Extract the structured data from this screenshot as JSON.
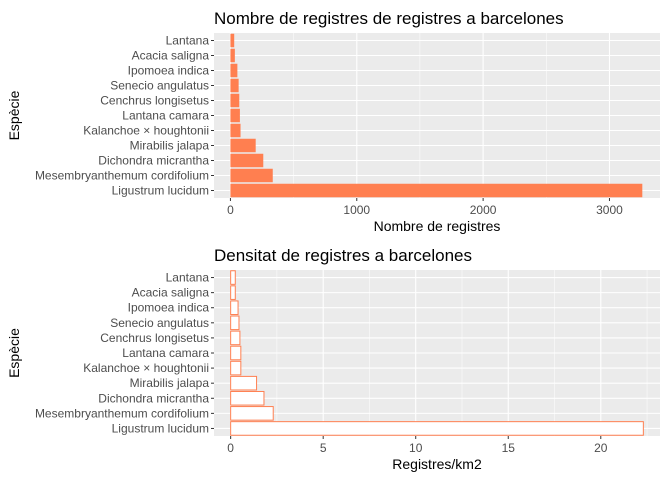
{
  "colors": {
    "panel_bg": "#ebebeb",
    "grid": "#ffffff",
    "bar_fill": "#ff7f50",
    "bar_outline": "#ff7f50",
    "outline_fill": "#ffffff",
    "tick_text": "#4d4d4d",
    "tick_mark": "#333333"
  },
  "chart_data": [
    {
      "type": "bar",
      "orientation": "horizontal",
      "style": "filled",
      "title": "Nombre de registres de registres a barcelones",
      "xlabel": "Nombre de registres",
      "ylabel": "Espècie",
      "categories": [
        "Ligustrum lucidum",
        "Mesembryanthemum cordifolium",
        "Dichondra micrantha",
        "Mirabilis jalapa",
        "Kalanchoe × houghtonii",
        "Lantana camara",
        "Cenchrus longisetus",
        "Senecio angulatus",
        "Ipomoea indica",
        "Acacia saligna",
        "Lantana"
      ],
      "values": [
        3260,
        335,
        260,
        200,
        80,
        75,
        70,
        65,
        55,
        35,
        30
      ],
      "xlim": [
        -130,
        3400
      ],
      "xticks": [
        0,
        1000,
        2000,
        3000
      ],
      "grid": true,
      "legend": "none"
    },
    {
      "type": "bar",
      "orientation": "horizontal",
      "style": "outlined",
      "title": "Densitat de registres a barcelones",
      "xlabel": "Registres/km2",
      "ylabel": "Espècie",
      "categories": [
        "Ligustrum lucidum",
        "Mesembryanthemum cordifolium",
        "Dichondra micrantha",
        "Mirabilis jalapa",
        "Kalanchoe × houghtonii",
        "Lantana camara",
        "Cenchrus longisetus",
        "Senecio angulatus",
        "Ipomoea indica",
        "Acacia saligna",
        "Lantana"
      ],
      "values": [
        22.3,
        2.3,
        1.8,
        1.4,
        0.55,
        0.55,
        0.5,
        0.45,
        0.4,
        0.25,
        0.25
      ],
      "xlim": [
        -0.9,
        23.2
      ],
      "xticks": [
        0,
        5,
        10,
        15,
        20
      ],
      "grid": true,
      "legend": "none"
    }
  ]
}
